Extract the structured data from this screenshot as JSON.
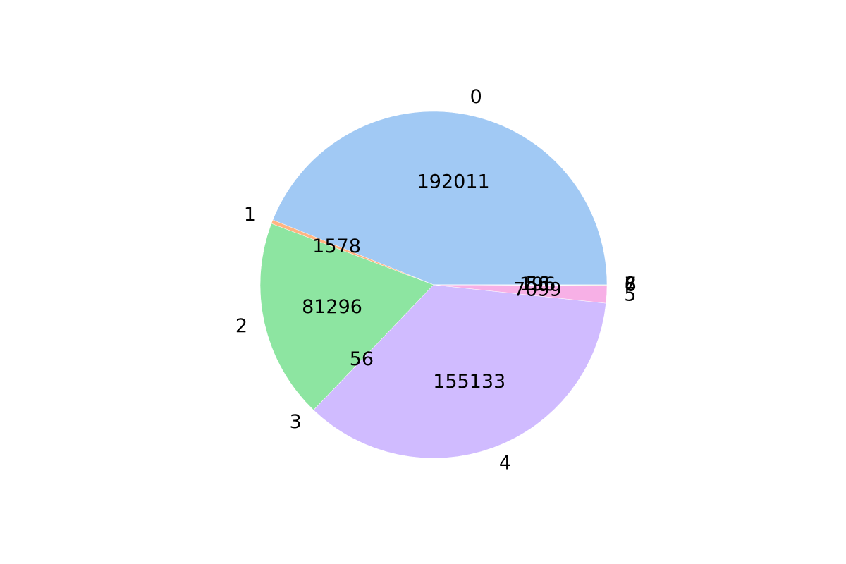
{
  "chart_data": {
    "type": "pie",
    "title": "",
    "labels": [
      "0",
      "1",
      "2",
      "3",
      "4",
      "5",
      "6",
      "7",
      "8"
    ],
    "values": [
      192011,
      1578,
      81296,
      56,
      155133,
      7099,
      196,
      56,
      50
    ],
    "value_labels": [
      "192011",
      "1578",
      "81296",
      "56",
      "155133",
      "7099",
      "196",
      "56",
      "50"
    ],
    "start_angle_deg": 0,
    "direction": "counterclockwise",
    "colors": [
      "#a1c9f4",
      "#ffb482",
      "#8de5a1",
      "#ff9f9b",
      "#d0bbff",
      "#f7b0e6",
      "#debb9b",
      "#fab0e4",
      "#cfcfcf"
    ]
  }
}
